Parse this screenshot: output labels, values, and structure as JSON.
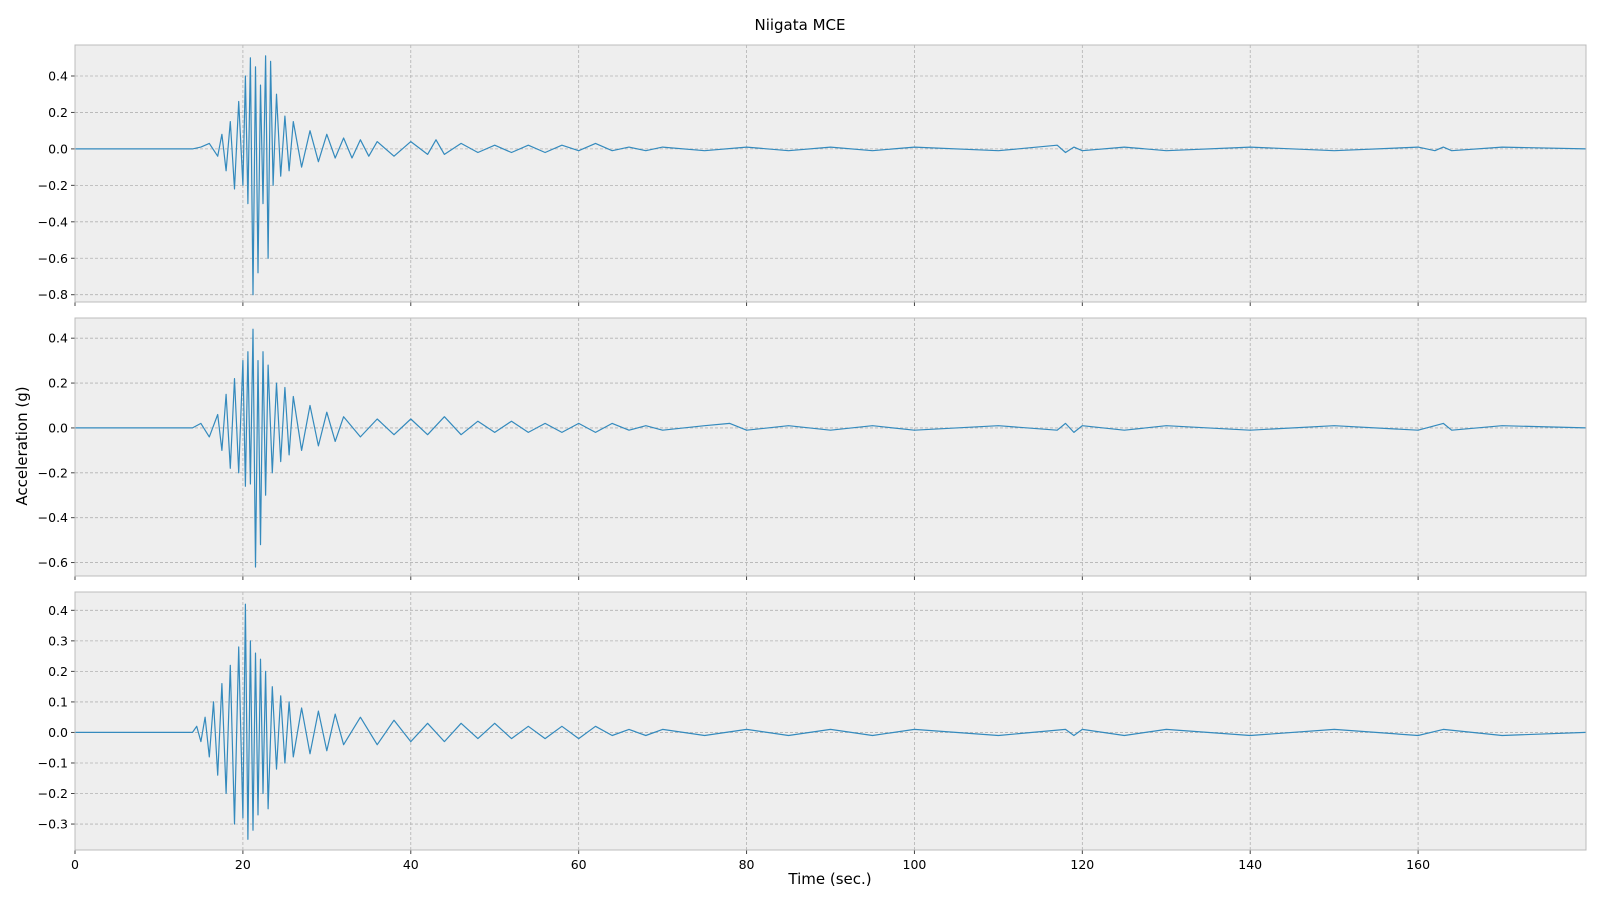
{
  "chart_data": {
    "type": "line",
    "title": "Niigata MCE",
    "xlabel": "Time (sec.)",
    "ylabel": "Acceleration (g)",
    "xlim": [
      0,
      180
    ],
    "xticks": [
      0,
      20,
      40,
      60,
      80,
      100,
      120,
      140,
      160
    ],
    "grid": true,
    "line_color": "#348ABD",
    "background_color": "#EEEEEE",
    "grid_color": "#B2B2B2",
    "panels": [
      {
        "ylim": [
          -0.84,
          0.57
        ],
        "yticks": [
          -0.8,
          -0.6,
          -0.4,
          -0.2,
          0.0,
          0.2,
          0.4
        ],
        "ytick_labels": [
          "−0.8",
          "−0.6",
          "−0.4",
          "−0.2",
          "0.0",
          "0.2",
          "0.4"
        ],
        "x": [
          0,
          14,
          15,
          16,
          17,
          17.5,
          18,
          18.5,
          19,
          19.5,
          20,
          20.3,
          20.6,
          20.9,
          21.2,
          21.5,
          21.8,
          22.1,
          22.4,
          22.7,
          23,
          23.3,
          23.6,
          24,
          24.5,
          25,
          25.5,
          26,
          27,
          28,
          29,
          30,
          31,
          32,
          33,
          34,
          35,
          36,
          38,
          40,
          42,
          43,
          44,
          46,
          48,
          50,
          52,
          54,
          56,
          58,
          60,
          62,
          64,
          66,
          68,
          70,
          75,
          80,
          85,
          90,
          95,
          100,
          110,
          117,
          118,
          119,
          120,
          125,
          130,
          140,
          150,
          160,
          162,
          163,
          164,
          170,
          180
        ],
        "y": [
          0,
          0,
          0.01,
          0.03,
          -0.04,
          0.08,
          -0.12,
          0.15,
          -0.22,
          0.26,
          -0.2,
          0.4,
          -0.3,
          0.5,
          -0.8,
          0.45,
          -0.68,
          0.35,
          -0.3,
          0.51,
          -0.6,
          0.48,
          -0.2,
          0.3,
          -0.15,
          0.18,
          -0.12,
          0.15,
          -0.1,
          0.1,
          -0.07,
          0.08,
          -0.05,
          0.06,
          -0.05,
          0.05,
          -0.04,
          0.04,
          -0.04,
          0.04,
          -0.03,
          0.05,
          -0.03,
          0.03,
          -0.02,
          0.02,
          -0.02,
          0.02,
          -0.02,
          0.02,
          -0.01,
          0.03,
          -0.01,
          0.01,
          -0.01,
          0.01,
          -0.01,
          0.01,
          -0.01,
          0.01,
          -0.01,
          0.01,
          -0.01,
          0.02,
          -0.02,
          0.01,
          -0.01,
          0.01,
          -0.01,
          0.01,
          -0.01,
          0.01,
          -0.01,
          0.01,
          -0.01,
          0.01,
          0
        ]
      },
      {
        "ylim": [
          -0.66,
          0.49
        ],
        "yticks": [
          -0.6,
          -0.4,
          -0.2,
          0.0,
          0.2,
          0.4
        ],
        "ytick_labels": [
          "−0.6",
          "−0.4",
          "−0.2",
          "0.0",
          "0.2",
          "0.4"
        ],
        "x": [
          0,
          14,
          15,
          16,
          17,
          17.5,
          18,
          18.5,
          19,
          19.5,
          20,
          20.3,
          20.6,
          20.9,
          21.2,
          21.5,
          21.8,
          22.1,
          22.4,
          22.7,
          23,
          23.5,
          24,
          24.5,
          25,
          25.5,
          26,
          27,
          28,
          29,
          30,
          31,
          32,
          34,
          36,
          38,
          40,
          42,
          44,
          46,
          48,
          50,
          52,
          54,
          56,
          58,
          60,
          62,
          64,
          66,
          68,
          70,
          75,
          78,
          80,
          85,
          90,
          95,
          100,
          110,
          117,
          118,
          119,
          120,
          125,
          130,
          140,
          150,
          160,
          163,
          164,
          170,
          180
        ],
        "y": [
          0,
          0,
          0.02,
          -0.04,
          0.06,
          -0.1,
          0.15,
          -0.18,
          0.22,
          -0.2,
          0.3,
          -0.26,
          0.34,
          -0.25,
          0.44,
          -0.62,
          0.3,
          -0.52,
          0.34,
          -0.3,
          0.28,
          -0.2,
          0.2,
          -0.15,
          0.18,
          -0.12,
          0.14,
          -0.1,
          0.1,
          -0.08,
          0.07,
          -0.06,
          0.05,
          -0.04,
          0.04,
          -0.03,
          0.04,
          -0.03,
          0.05,
          -0.03,
          0.03,
          -0.02,
          0.03,
          -0.02,
          0.02,
          -0.02,
          0.02,
          -0.02,
          0.02,
          -0.01,
          0.01,
          -0.01,
          0.01,
          0.02,
          -0.01,
          0.01,
          -0.01,
          0.01,
          -0.01,
          0.01,
          -0.01,
          0.02,
          -0.02,
          0.01,
          -0.01,
          0.01,
          -0.01,
          0.01,
          -0.01,
          0.02,
          -0.01,
          0.01,
          0
        ]
      },
      {
        "ylim": [
          -0.385,
          0.46
        ],
        "yticks": [
          -0.3,
          -0.2,
          -0.1,
          0.0,
          0.1,
          0.2,
          0.3,
          0.4
        ],
        "ytick_labels": [
          "−0.3",
          "−0.2",
          "−0.1",
          "0.0",
          "0.1",
          "0.2",
          "0.3",
          "0.4"
        ],
        "x": [
          0,
          14,
          14.5,
          15,
          15.5,
          16,
          16.5,
          17,
          17.5,
          18,
          18.5,
          19,
          19.5,
          20,
          20.3,
          20.6,
          20.9,
          21.2,
          21.5,
          21.8,
          22.1,
          22.4,
          22.7,
          23,
          23.5,
          24,
          24.5,
          25,
          25.5,
          26,
          27,
          28,
          29,
          30,
          31,
          32,
          34,
          36,
          38,
          40,
          42,
          44,
          46,
          48,
          50,
          52,
          54,
          56,
          58,
          60,
          62,
          64,
          66,
          68,
          70,
          75,
          80,
          85,
          90,
          95,
          100,
          110,
          118,
          119,
          120,
          125,
          130,
          140,
          150,
          160,
          163,
          170,
          180
        ],
        "y": [
          0,
          0,
          0.02,
          -0.03,
          0.05,
          -0.08,
          0.1,
          -0.14,
          0.16,
          -0.2,
          0.22,
          -0.3,
          0.28,
          -0.28,
          0.42,
          -0.35,
          0.3,
          -0.32,
          0.26,
          -0.27,
          0.24,
          -0.2,
          0.2,
          -0.25,
          0.15,
          -0.12,
          0.12,
          -0.1,
          0.1,
          -0.08,
          0.08,
          -0.07,
          0.07,
          -0.06,
          0.06,
          -0.04,
          0.05,
          -0.04,
          0.04,
          -0.03,
          0.03,
          -0.03,
          0.03,
          -0.02,
          0.03,
          -0.02,
          0.02,
          -0.02,
          0.02,
          -0.02,
          0.02,
          -0.01,
          0.01,
          -0.01,
          0.01,
          -0.01,
          0.01,
          -0.01,
          0.01,
          -0.01,
          0.01,
          -0.01,
          0.01,
          -0.01,
          0.01,
          -0.01,
          0.01,
          -0.01,
          0.01,
          -0.01,
          0.01,
          -0.01,
          0
        ]
      }
    ]
  }
}
